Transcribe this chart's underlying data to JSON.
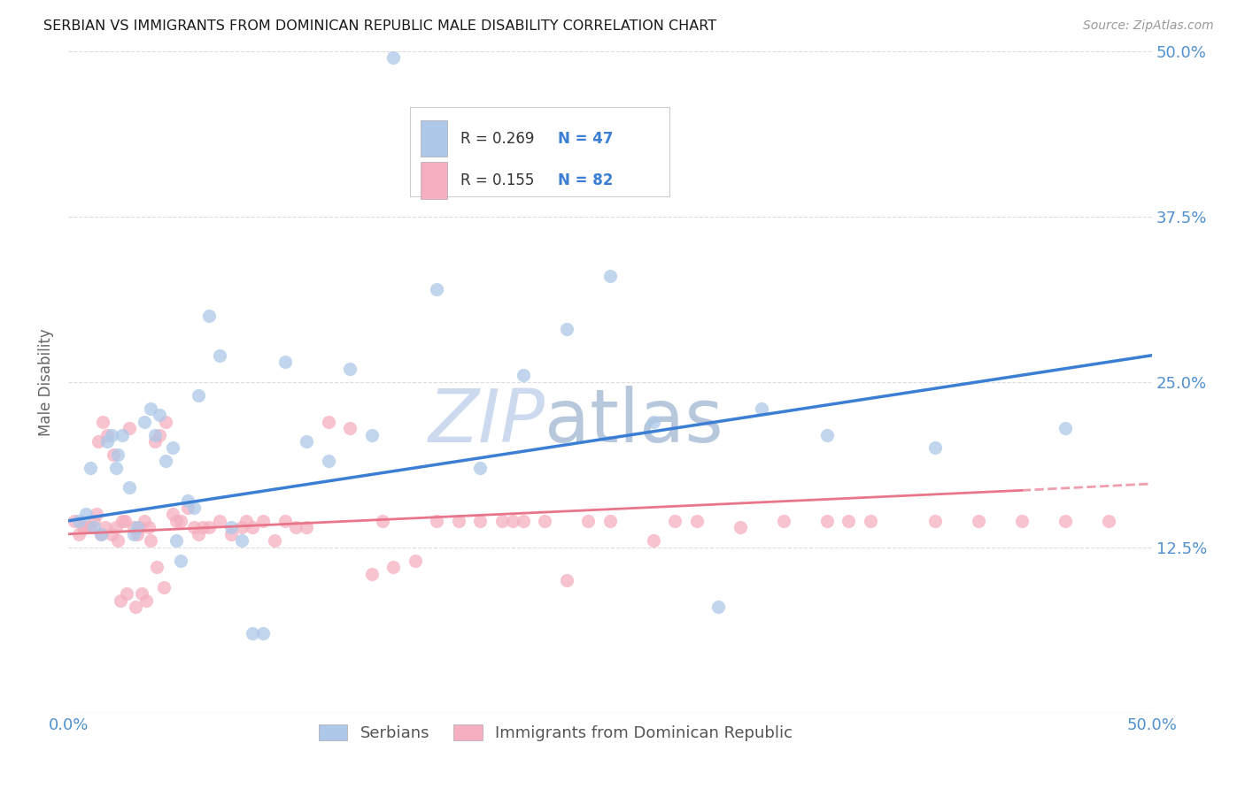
{
  "title": "SERBIAN VS IMMIGRANTS FROM DOMINICAN REPUBLIC MALE DISABILITY CORRELATION CHART",
  "source": "Source: ZipAtlas.com",
  "ylabel": "Male Disability",
  "series1_label": "Serbians",
  "series2_label": "Immigrants from Dominican Republic",
  "series1_R": "0.269",
  "series1_N": "47",
  "series2_R": "0.155",
  "series2_N": "82",
  "series1_color": "#adc8e8",
  "series2_color": "#f5afc0",
  "line1_color": "#3a7fd4",
  "line2_color": "#e8758a",
  "watermark_zip": "ZIP",
  "watermark_atlas": "atlas",
  "xlim": [
    0,
    50
  ],
  "ylim": [
    0,
    50
  ],
  "ytick_vals": [
    0,
    12.5,
    25.0,
    37.5,
    50.0
  ],
  "ytick_labels": [
    "",
    "12.5%",
    "25.0%",
    "37.5%",
    "50.0%"
  ],
  "xtick_vals": [
    0,
    10,
    20,
    30,
    40,
    50
  ],
  "xtick_labels": [
    "0.0%",
    "",
    "",
    "",
    "",
    "50.0%"
  ],
  "series1_x": [
    0.5,
    0.8,
    1.0,
    1.2,
    1.5,
    1.8,
    2.0,
    2.2,
    2.3,
    2.5,
    2.8,
    3.0,
    3.2,
    3.5,
    3.8,
    4.0,
    4.2,
    4.5,
    4.8,
    5.0,
    5.2,
    5.5,
    5.8,
    6.0,
    6.5,
    7.0,
    7.5,
    8.0,
    8.5,
    9.0,
    10.0,
    11.0,
    12.0,
    13.0,
    14.0,
    15.0,
    17.0,
    19.0,
    21.0,
    23.0,
    25.0,
    27.0,
    30.0,
    32.0,
    35.0,
    40.0,
    46.0
  ],
  "series1_y": [
    14.5,
    15.0,
    18.5,
    14.0,
    13.5,
    20.5,
    21.0,
    18.5,
    19.5,
    21.0,
    17.0,
    13.5,
    14.0,
    22.0,
    23.0,
    21.0,
    22.5,
    19.0,
    20.0,
    13.0,
    11.5,
    16.0,
    15.5,
    24.0,
    30.0,
    27.0,
    14.0,
    13.0,
    6.0,
    6.0,
    26.5,
    20.5,
    19.0,
    26.0,
    21.0,
    49.5,
    32.0,
    18.5,
    25.5,
    29.0,
    33.0,
    22.0,
    8.0,
    23.0,
    21.0,
    20.0,
    21.5
  ],
  "series2_x": [
    0.3,
    0.5,
    0.7,
    0.8,
    1.0,
    1.2,
    1.3,
    1.4,
    1.5,
    1.6,
    1.7,
    1.8,
    2.0,
    2.1,
    2.2,
    2.3,
    2.4,
    2.5,
    2.6,
    2.7,
    2.8,
    3.0,
    3.1,
    3.2,
    3.3,
    3.4,
    3.5,
    3.6,
    3.7,
    3.8,
    4.0,
    4.1,
    4.2,
    4.4,
    4.5,
    4.8,
    5.0,
    5.2,
    5.5,
    5.8,
    6.0,
    6.2,
    6.5,
    7.0,
    7.5,
    8.0,
    8.2,
    8.5,
    9.0,
    9.5,
    10.0,
    10.5,
    11.0,
    12.0,
    13.0,
    14.0,
    14.5,
    15.0,
    16.0,
    17.0,
    18.0,
    19.0,
    20.0,
    20.5,
    21.0,
    22.0,
    23.0,
    24.0,
    25.0,
    27.0,
    28.0,
    29.0,
    31.0,
    33.0,
    35.0,
    36.0,
    37.0,
    40.0,
    42.0,
    44.0,
    46.0,
    48.0
  ],
  "series2_y": [
    14.5,
    13.5,
    14.0,
    14.0,
    14.0,
    14.5,
    15.0,
    20.5,
    13.5,
    22.0,
    14.0,
    21.0,
    13.5,
    19.5,
    14.0,
    13.0,
    8.5,
    14.5,
    14.5,
    9.0,
    21.5,
    14.0,
    8.0,
    13.5,
    14.0,
    9.0,
    14.5,
    8.5,
    14.0,
    13.0,
    20.5,
    11.0,
    21.0,
    9.5,
    22.0,
    15.0,
    14.5,
    14.5,
    15.5,
    14.0,
    13.5,
    14.0,
    14.0,
    14.5,
    13.5,
    14.0,
    14.5,
    14.0,
    14.5,
    13.0,
    14.5,
    14.0,
    14.0,
    22.0,
    21.5,
    10.5,
    14.5,
    11.0,
    11.5,
    14.5,
    14.5,
    14.5,
    14.5,
    14.5,
    14.5,
    14.5,
    10.0,
    14.5,
    14.5,
    13.0,
    14.5,
    14.5,
    14.0,
    14.5,
    14.5,
    14.5,
    14.5,
    14.5,
    14.5,
    14.5,
    14.5,
    14.5
  ],
  "line1_x_start": 0,
  "line1_x_end": 50,
  "line1_y_start": 14.5,
  "line1_y_end": 27.0,
  "line2_x_start": 0,
  "line2_x_end": 44,
  "line2_y_start": 13.5,
  "line2_y_end": 16.8,
  "line2_dash_x_start": 44,
  "line2_dash_x_end": 50,
  "line2_dash_y_start": 16.8,
  "line2_dash_y_end": 17.3,
  "background_color": "#ffffff",
  "grid_color": "#dddddd",
  "title_color": "#1a1a1a",
  "tick_color": "#5090d0",
  "tick_fontsize": 13,
  "title_fontsize": 11.5,
  "source_fontsize": 10
}
